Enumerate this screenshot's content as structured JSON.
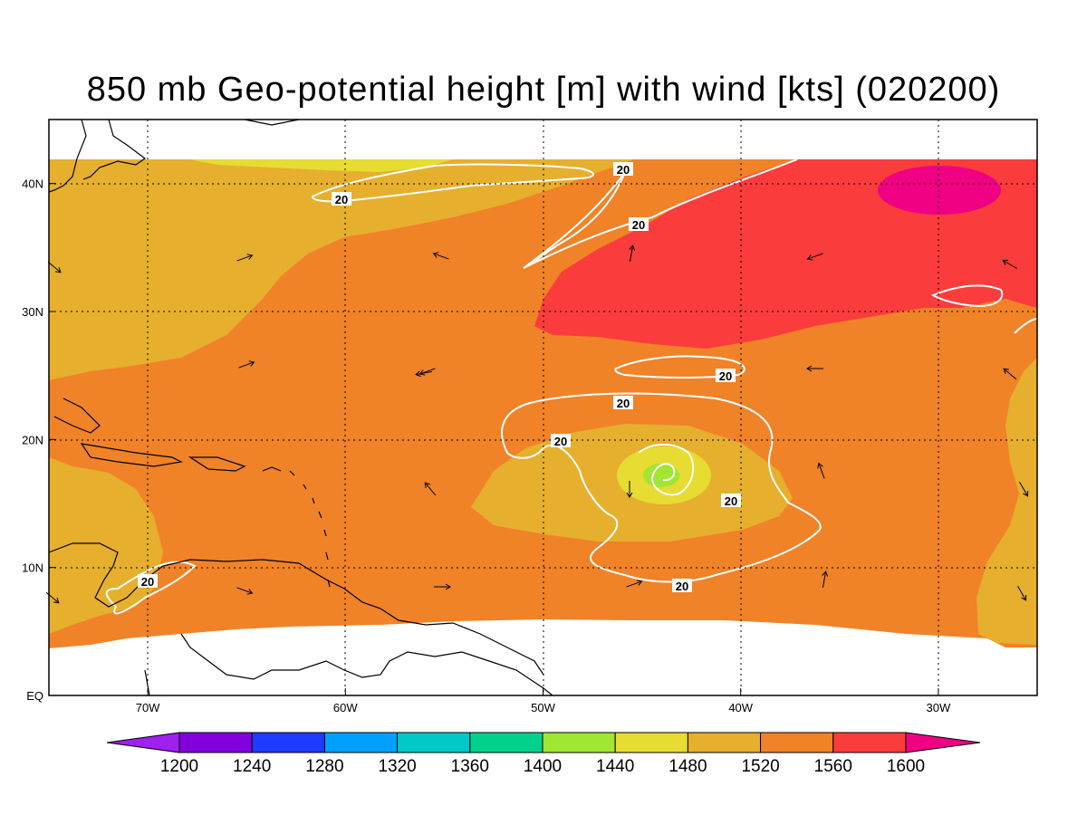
{
  "title": "850 mb Geo-potential height [m] with wind [kts] (020200)",
  "x_axis": {
    "labels": [
      "70W",
      "60W",
      "50W",
      "40W",
      "30W"
    ],
    "values": [
      -70,
      -60,
      -50,
      -40,
      -30
    ],
    "range": [
      -75,
      -25
    ]
  },
  "y_axis": {
    "labels": [
      "EQ",
      "10N",
      "20N",
      "30N",
      "40N"
    ],
    "values": [
      0,
      10,
      20,
      30,
      40
    ],
    "range": [
      0,
      45
    ]
  },
  "grid": "dotted",
  "colorbar": {
    "levels": [
      "1200",
      "1240",
      "1280",
      "1320",
      "1360",
      "1400",
      "1440",
      "1480",
      "1520",
      "1560",
      "1600"
    ],
    "colors": [
      "#a020f0",
      "#8200dc",
      "#1e3cff",
      "#00a0ff",
      "#00c8c8",
      "#00d28c",
      "#a0e632",
      "#e6dc32",
      "#e6af2d",
      "#f08228",
      "#fa3c3c",
      "#f00082"
    ],
    "extend": "both"
  },
  "contour_label": "20",
  "wind_contour_color": "#ffffff",
  "coastline_color": "#000000"
}
